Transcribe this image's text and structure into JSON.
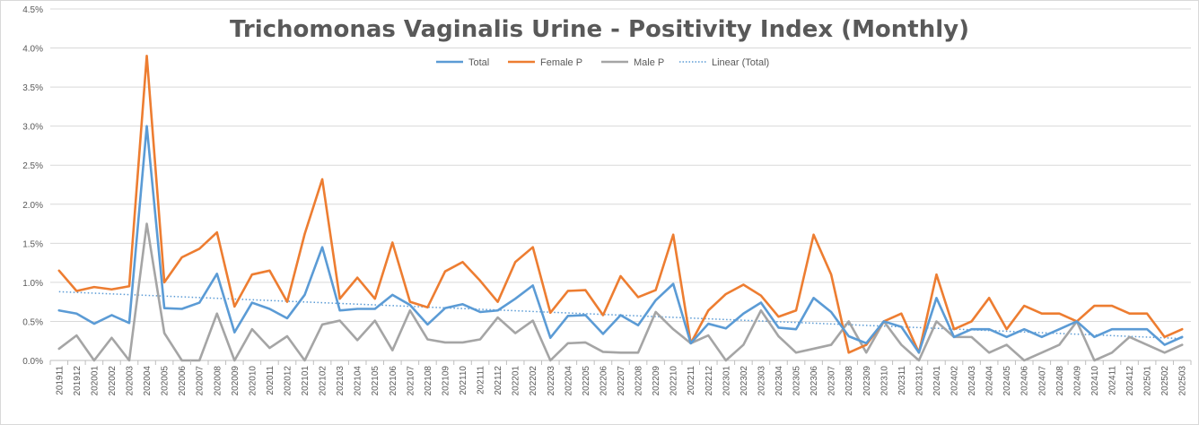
{
  "chart_data": {
    "type": "line",
    "title": "Trichomonas Vaginalis Urine - Positivity Index (Monthly)",
    "xlabel": "",
    "ylabel": "",
    "ylim": [
      0,
      0.045
    ],
    "yticks": [
      0,
      0.005,
      0.01,
      0.015,
      0.02,
      0.025,
      0.03,
      0.035,
      0.04,
      0.045
    ],
    "ytick_labels": [
      "0.0%",
      "0.5%",
      "1.0%",
      "1.5%",
      "2.0%",
      "2.5%",
      "3.0%",
      "3.5%",
      "4.0%",
      "4.5%"
    ],
    "grid": true,
    "legend_position": "top",
    "categories": [
      "201911",
      "201912",
      "202001",
      "202002",
      "202003",
      "202004",
      "202005",
      "202006",
      "202007",
      "202008",
      "202009",
      "202010",
      "202011",
      "202012",
      "202101",
      "202102",
      "202103",
      "202104",
      "202105",
      "202106",
      "202107",
      "202108",
      "202109",
      "202110",
      "202111",
      "202112",
      "202201",
      "202202",
      "202203",
      "202204",
      "202205",
      "202206",
      "202207",
      "202208",
      "202209",
      "202210",
      "202211",
      "202212",
      "202301",
      "202302",
      "202303",
      "202304",
      "202305",
      "202306",
      "202307",
      "202308",
      "202309",
      "202310",
      "202311",
      "202312",
      "202401",
      "202402",
      "202403",
      "202404",
      "202405",
      "202406",
      "202407",
      "202408",
      "202409",
      "202410",
      "202411",
      "202412",
      "202501",
      "202502",
      "202503"
    ],
    "series": [
      {
        "name": "Total",
        "color": "#5B9BD5",
        "values": [
          0.0064,
          0.006,
          0.0047,
          0.0058,
          0.0048,
          0.03,
          0.0067,
          0.0066,
          0.0074,
          0.0111,
          0.0036,
          0.0074,
          0.0066,
          0.0054,
          0.0084,
          0.0145,
          0.0064,
          0.0066,
          0.0066,
          0.0084,
          0.0071,
          0.0046,
          0.0067,
          0.0072,
          0.0062,
          0.0064,
          0.0079,
          0.0096,
          0.0029,
          0.0057,
          0.0058,
          0.0034,
          0.0058,
          0.0045,
          0.0077,
          0.0098,
          0.0022,
          0.0047,
          0.0041,
          0.006,
          0.0074,
          0.0042,
          0.004,
          0.008,
          0.0062,
          0.0031,
          0.0022,
          0.005,
          0.0043,
          0.001,
          0.008,
          0.003,
          0.004,
          0.004,
          0.003,
          0.004,
          0.003,
          0.004,
          0.005,
          0.003,
          0.004,
          0.004,
          0.004,
          0.002,
          0.003
        ]
      },
      {
        "name": "Female P",
        "color": "#ED7D31",
        "values": [
          0.0115,
          0.0089,
          0.0094,
          0.0091,
          0.0095,
          0.039,
          0.01,
          0.0132,
          0.0143,
          0.0164,
          0.0069,
          0.011,
          0.0115,
          0.0075,
          0.0162,
          0.0232,
          0.0079,
          0.0106,
          0.0079,
          0.0151,
          0.0075,
          0.0068,
          0.0114,
          0.0126,
          0.0102,
          0.0075,
          0.0126,
          0.0145,
          0.0061,
          0.0089,
          0.009,
          0.0058,
          0.0108,
          0.0081,
          0.009,
          0.0161,
          0.0022,
          0.0064,
          0.0085,
          0.0097,
          0.0083,
          0.0056,
          0.0064,
          0.0161,
          0.011,
          0.001,
          0.002,
          0.005,
          0.006,
          0.001,
          0.011,
          0.004,
          0.005,
          0.008,
          0.004,
          0.007,
          0.006,
          0.006,
          0.005,
          0.007,
          0.007,
          0.006,
          0.006,
          0.003,
          0.004
        ]
      },
      {
        "name": "Male P",
        "color": "#A5A5A5",
        "values": [
          0.0015,
          0.0032,
          0.0,
          0.0029,
          0.0,
          0.0175,
          0.0035,
          0.0,
          0.0,
          0.006,
          0.0,
          0.004,
          0.0016,
          0.0031,
          0.0,
          0.0046,
          0.0051,
          0.0026,
          0.0051,
          0.0013,
          0.0064,
          0.0027,
          0.0023,
          0.0023,
          0.0027,
          0.0055,
          0.0035,
          0.0051,
          0.0,
          0.0022,
          0.0023,
          0.0011,
          0.001,
          0.001,
          0.0062,
          0.004,
          0.0022,
          0.0032,
          0.0,
          0.002,
          0.0064,
          0.0031,
          0.001,
          0.0015,
          0.002,
          0.005,
          0.001,
          0.005,
          0.002,
          0.0,
          0.005,
          0.003,
          0.003,
          0.001,
          0.002,
          0.0,
          0.001,
          0.002,
          0.005,
          0.0,
          0.001,
          0.003,
          0.002,
          0.001,
          0.002
        ]
      }
    ],
    "trendline": {
      "name": "Linear (Total)",
      "color": "#5B9BD5",
      "start": 0.0088,
      "end": 0.0028
    }
  }
}
